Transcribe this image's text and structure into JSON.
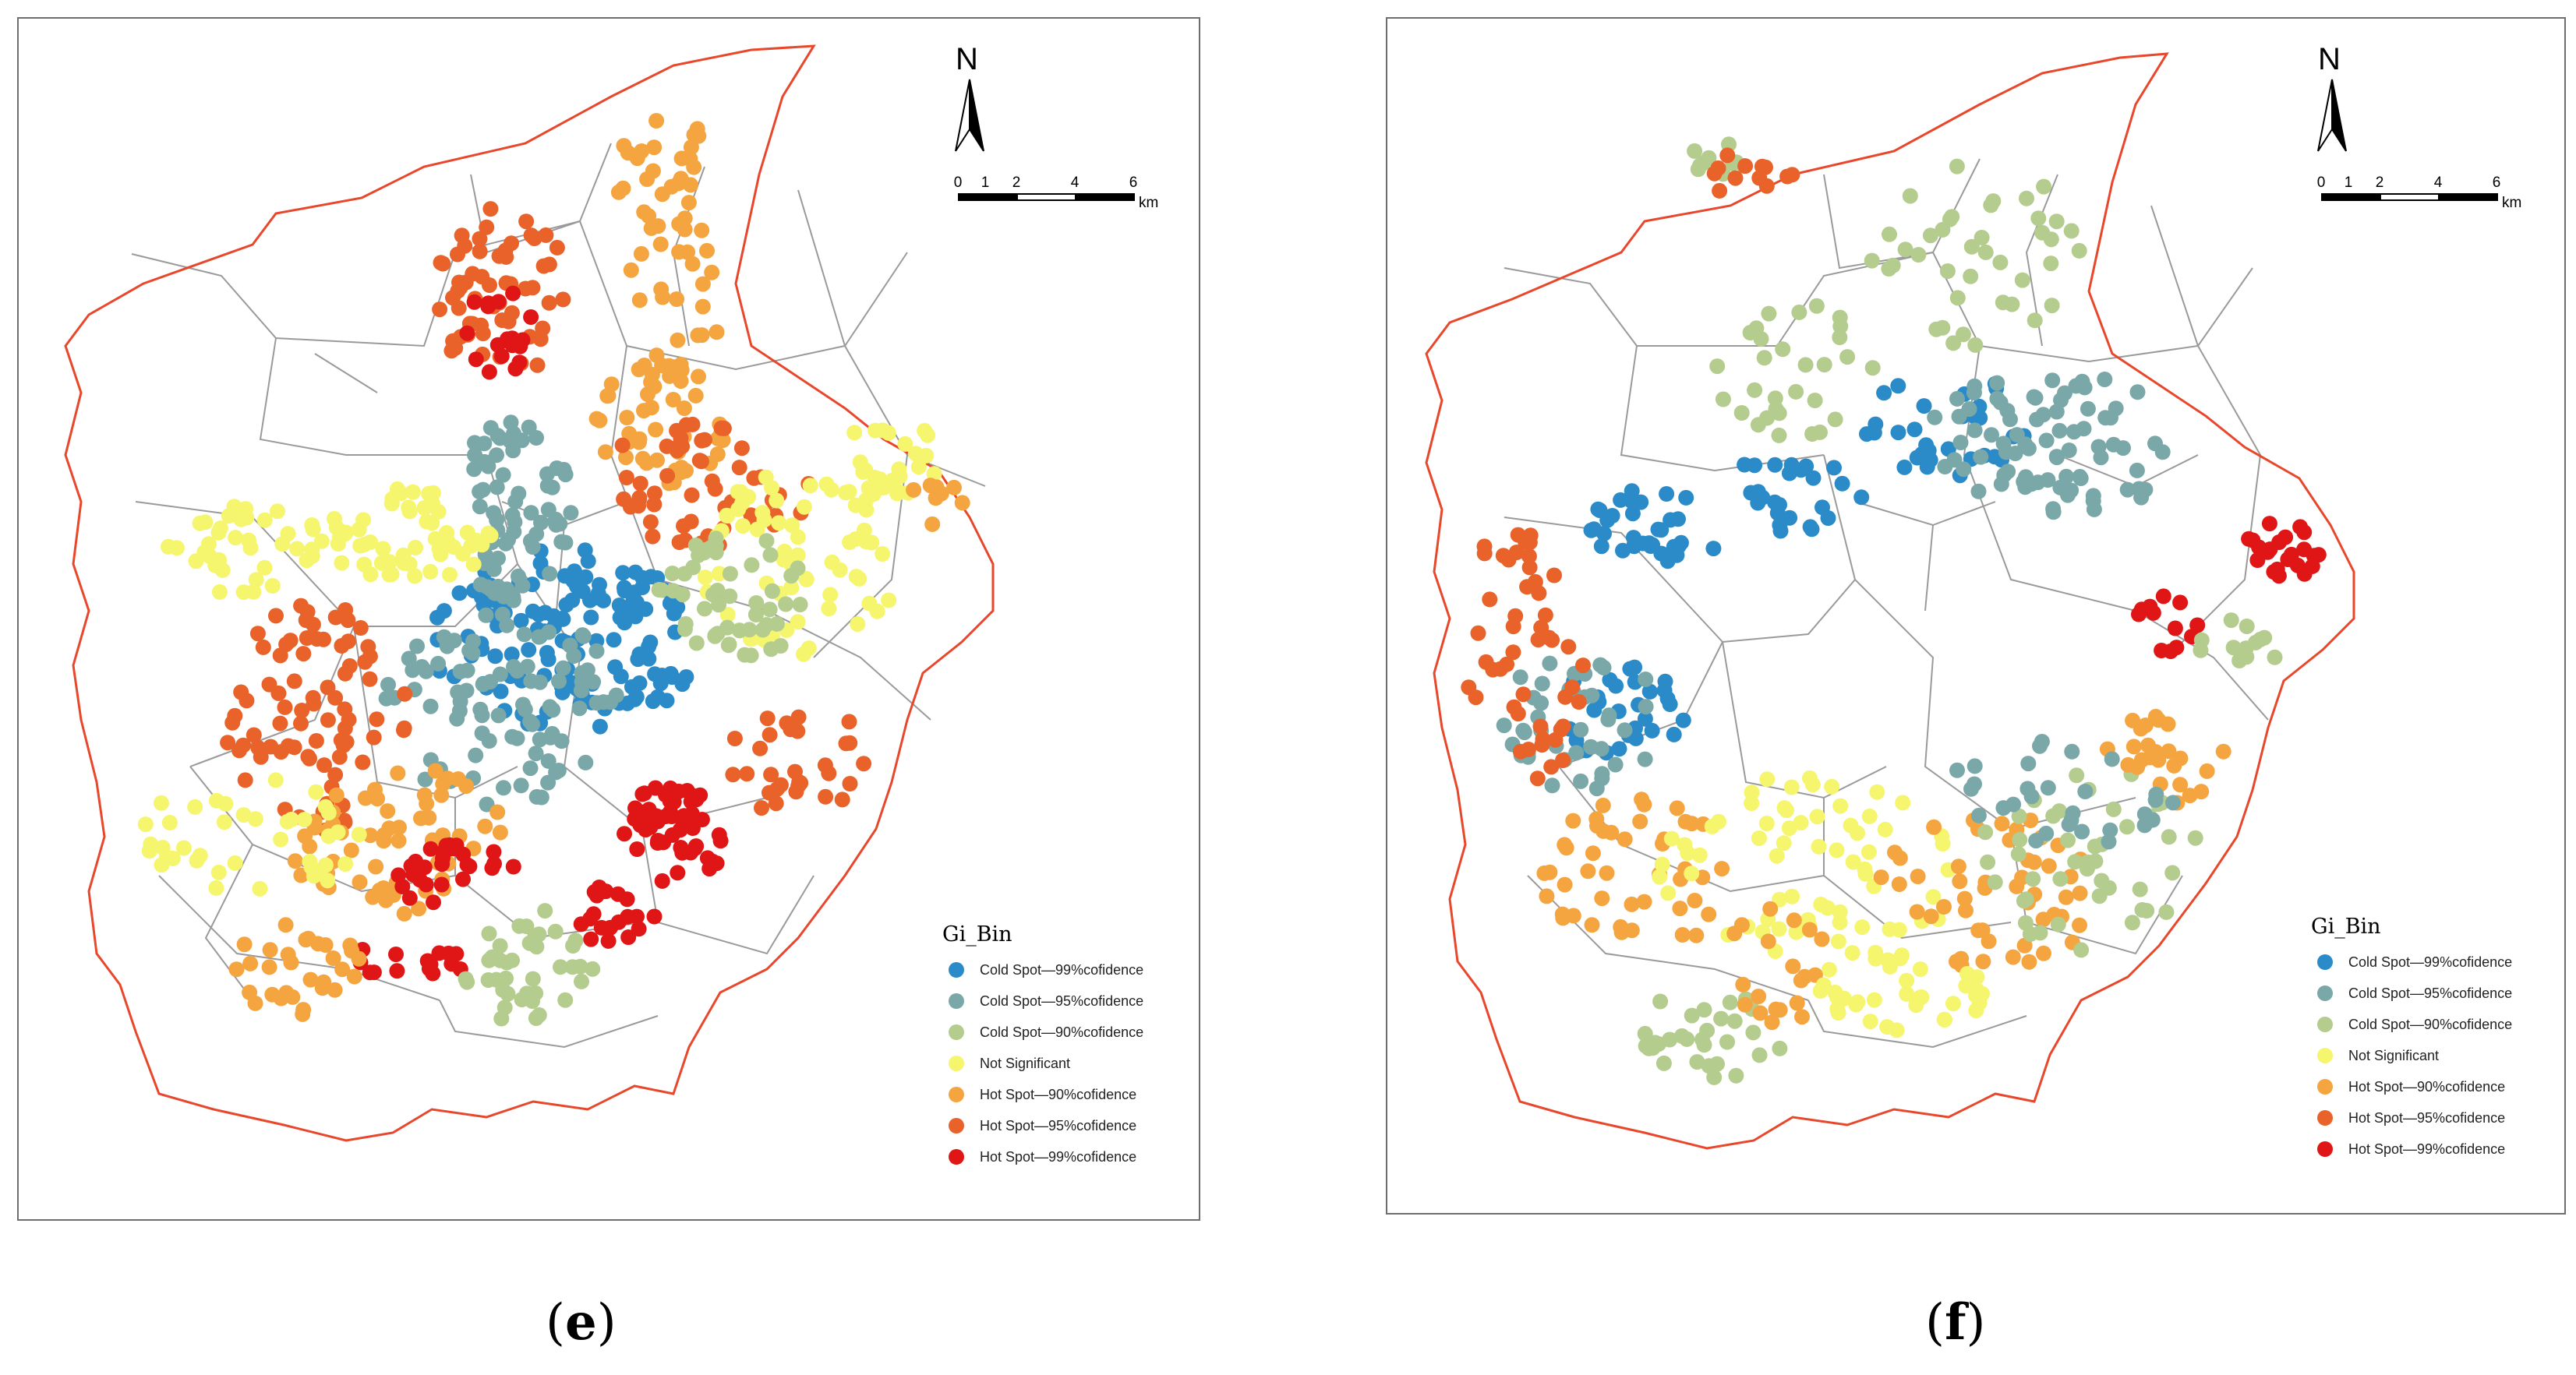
{
  "colors": {
    "boundary": "#e8472b",
    "district_lines": "#9a9a9a",
    "classes": {
      "cold99": "#2b8bc8",
      "cold95": "#7aa8a8",
      "cold90": "#b4cc8e",
      "ns": "#f5f56e",
      "hot90": "#f5a540",
      "hot95": "#e8622a",
      "hot99": "#e01616"
    }
  },
  "panels": [
    {
      "id": "e",
      "caption_open": "(",
      "caption_letter": "e",
      "caption_close": ")",
      "north_label": "N",
      "scale": {
        "ticks": [
          "0",
          "1",
          "2",
          "4",
          "6"
        ],
        "unit": "km"
      },
      "legend": {
        "title": "Gi_Bin",
        "items": [
          {
            "key": "cold99",
            "label": "Cold Spot—99%cofidence"
          },
          {
            "key": "cold95",
            "label": "Cold Spot—95%cofidence"
          },
          {
            "key": "cold90",
            "label": "Cold Spot—90%cofidence"
          },
          {
            "key": "ns",
            "label": "Not Significant"
          },
          {
            "key": "hot90",
            "label": "Hot Spot—90%cofidence"
          },
          {
            "key": "hot95",
            "label": "Hot Spot—95%cofidence"
          },
          {
            "key": "hot99",
            "label": "Hot Spot—99%cofidence"
          }
        ]
      }
    },
    {
      "id": "f",
      "caption_open": "(",
      "caption_letter": "f",
      "caption_close": ")",
      "north_label": "N",
      "scale": {
        "ticks": [
          "0",
          "1",
          "2",
          "4",
          "6"
        ],
        "unit": "km"
      },
      "legend": {
        "title": "Gi_Bin",
        "items": [
          {
            "key": "cold99",
            "label": "Cold Spot—99%cofidence"
          },
          {
            "key": "cold95",
            "label": "Cold Spot—95%cofidence"
          },
          {
            "key": "cold90",
            "label": "Cold Spot—90%cofidence"
          },
          {
            "key": "ns",
            "label": "Not Significant"
          },
          {
            "key": "hot90",
            "label": "Hot Spot—90%cofidence"
          },
          {
            "key": "hot95",
            "label": "Hot Spot—95%cofidence"
          },
          {
            "key": "hot99",
            "label": "Hot Spot—99%cofidence"
          }
        ]
      }
    }
  ]
}
